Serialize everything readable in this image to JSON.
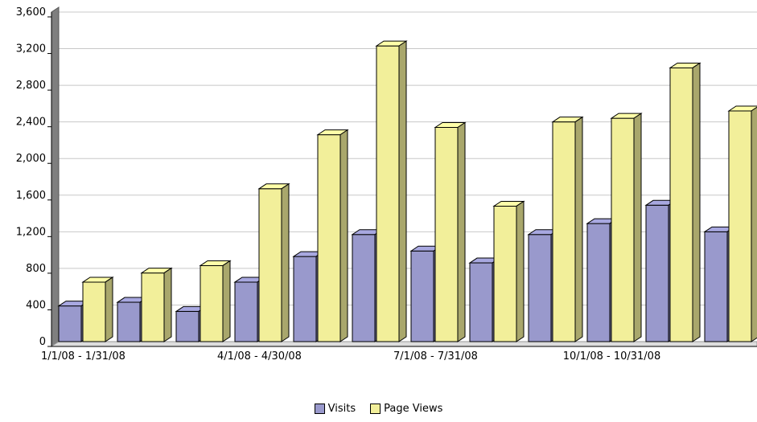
{
  "chart_data": {
    "type": "bar",
    "title": "",
    "xlabel": "",
    "ylabel": "",
    "ylim": [
      0,
      3600
    ],
    "yticks": [
      "0",
      "400",
      "800",
      "1,200",
      "1,600",
      "2,000",
      "2,400",
      "2,800",
      "3,200",
      "3,600"
    ],
    "grid": true,
    "legend_position": "bottom",
    "category_labels": [
      {
        "index": 0,
        "text": "1/1/08 - 1/31/08"
      },
      {
        "index": 3,
        "text": "4/1/08 - 4/30/08"
      },
      {
        "index": 6,
        "text": "7/1/08 - 7/31/08"
      },
      {
        "index": 9,
        "text": "10/1/08 - 10/31/08"
      }
    ],
    "series": [
      {
        "name": "Visits",
        "color": "#9999cc",
        "values": [
          390,
          430,
          330,
          650,
          930,
          1170,
          990,
          860,
          1170,
          1290,
          1490,
          1200
        ]
      },
      {
        "name": "Page Views",
        "color": "#f2ef9a",
        "values": [
          650,
          750,
          830,
          1670,
          2260,
          3230,
          2340,
          1480,
          2400,
          2440,
          2990,
          2520
        ]
      }
    ]
  }
}
